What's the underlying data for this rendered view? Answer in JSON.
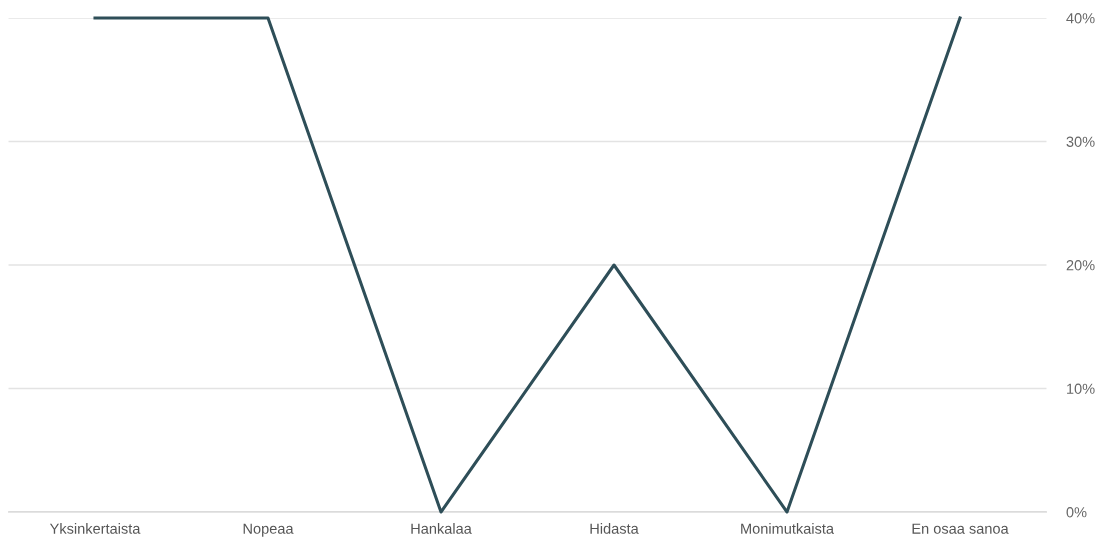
{
  "chart_data": {
    "type": "line",
    "categories": [
      "Yksinkertaista",
      "Nopeaa",
      "Hankalaa",
      "Hidasta",
      "Monimutkaista",
      "En osaa sanoa"
    ],
    "series": [
      {
        "color": "#2e4e58",
        "values": [
          40,
          40,
          0,
          20,
          0,
          40
        ]
      }
    ],
    "ylim": [
      0,
      40
    ],
    "yticks": [
      {
        "value": 0,
        "label": "0%"
      },
      {
        "value": 10,
        "label": "10%"
      },
      {
        "value": 20,
        "label": "20%"
      },
      {
        "value": 30,
        "label": "30%"
      },
      {
        "value": 40,
        "label": "40%"
      }
    ],
    "grid": "y",
    "legend": false,
    "marker": "none",
    "line_style": "solid"
  }
}
